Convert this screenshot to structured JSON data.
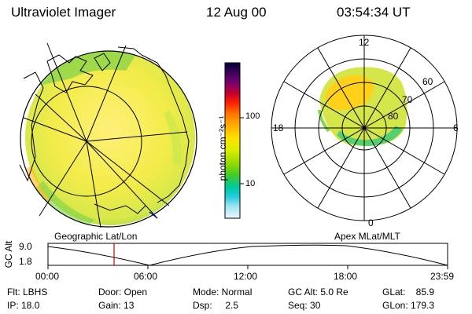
{
  "header": {
    "instrument": "Ultraviolet Imager",
    "date": "12 Aug 00",
    "time": "03:54:34 UT"
  },
  "geo_panel": {
    "caption": "Geographic Lat/Lon"
  },
  "mlt_panel": {
    "caption": "Apex MLat/MLT",
    "mlt_labels": [
      "12",
      "18",
      "6",
      "0"
    ],
    "lat_labels": [
      "60",
      "70",
      "80"
    ]
  },
  "colorbar": {
    "unit": "photon cm⁻²s⁻¹",
    "tick_labels": [
      "100",
      "10"
    ],
    "colors": [
      "#000033",
      "#2a0055",
      "#5a0080",
      "#8a0066",
      "#c00033",
      "#ff0000",
      "#ff5500",
      "#ff9900",
      "#ffcc00",
      "#ffee00",
      "#ccee00",
      "#88dd00",
      "#33cc33",
      "#00cc88",
      "#00bbcc",
      "#55ddee",
      "#aaeeff",
      "#e6f6ff"
    ]
  },
  "altitude_strip": {
    "axis_label": "GC Alt",
    "y_labels": [
      "9.0",
      "1.8"
    ],
    "time_labels": [
      "00:00",
      "06:00",
      "12:00",
      "18:00",
      "23:59"
    ],
    "marker_time": "03:54"
  },
  "status": {
    "flt": "Flt: LBHS",
    "ip": "IP: 18.0",
    "door": "Door: Open",
    "gain": "Gain: 13",
    "mode": "Mode: Normal",
    "dsp": "Dsp:     2.5",
    "gcalt": "GC Alt: 5.0 Re",
    "seq": "Seq: 30",
    "glat": "GLat:    85.9",
    "glon": "GLon: 179.3"
  }
}
